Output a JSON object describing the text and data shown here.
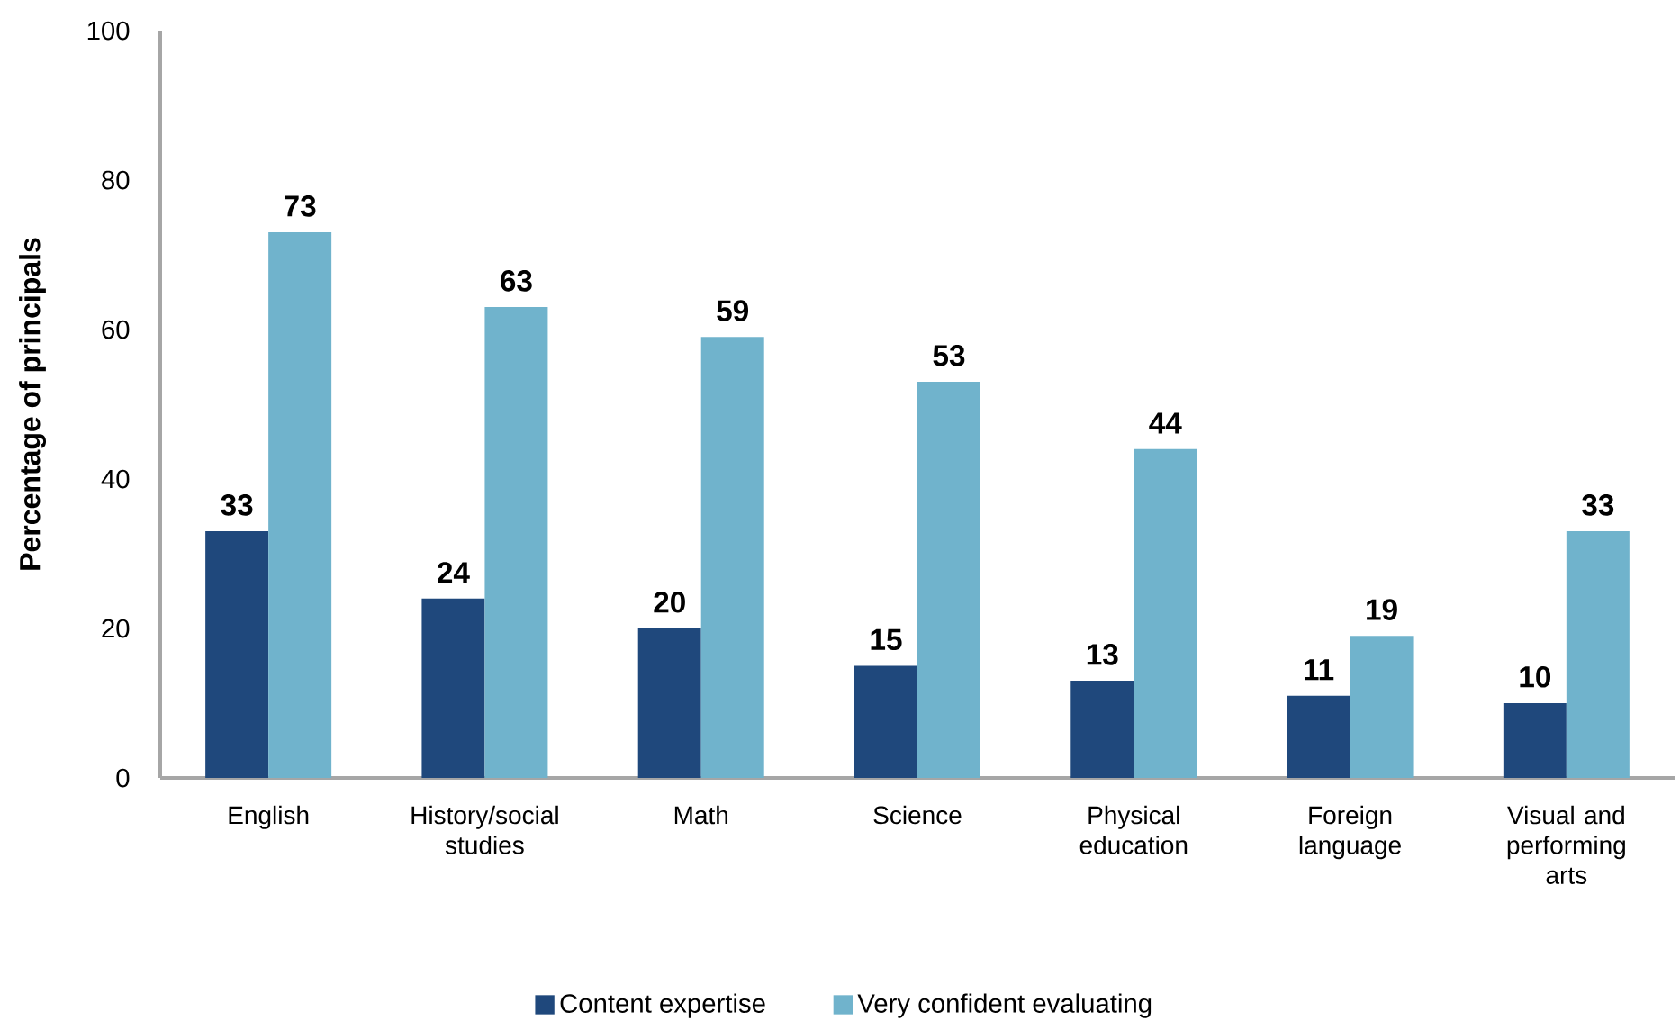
{
  "chart_data": {
    "type": "bar",
    "ylabel": "Percentage of principals",
    "categories": [
      "English",
      "History/social studies",
      "Math",
      "Science",
      "Physical education",
      "Foreign language",
      "Visual and performing arts"
    ],
    "series": [
      {
        "name": "Content expertise",
        "color": "#1f487c",
        "values": [
          33,
          24,
          20,
          15,
          13,
          11,
          10
        ]
      },
      {
        "name": "Very confident evaluating",
        "color": "#70b3cc",
        "values": [
          73,
          63,
          59,
          53,
          44,
          19,
          33
        ]
      }
    ],
    "ylim": [
      0,
      100
    ],
    "yticks": [
      0,
      20,
      40,
      60,
      80,
      100
    ],
    "data_labels": true,
    "legend": "bottom"
  }
}
